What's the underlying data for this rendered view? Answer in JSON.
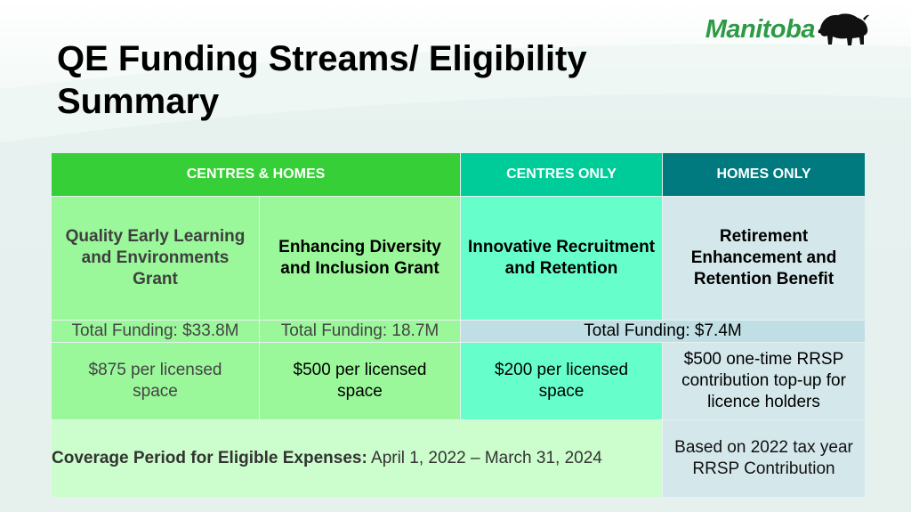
{
  "title": "QE Funding Streams/ Eligibility Summary",
  "logo": {
    "word": "Manitoba",
    "color": "#2e9a45"
  },
  "headers": {
    "centres_homes": "CENTRES & HOMES",
    "centres_only": "CENTRES ONLY",
    "homes_only": "HOMES ONLY"
  },
  "programs": [
    {
      "name": "Quality Early Learning and Environments Grant",
      "funding": "Total Funding: $33.8M",
      "rate": "$875 per licensed space"
    },
    {
      "name": "Enhancing Diversity and Inclusion Grant",
      "funding": "Total Funding: 18.7M",
      "rate": "$500 per licensed space"
    },
    {
      "name": "Innovative Recruitment and Retention",
      "rate": "$200 per licensed space"
    },
    {
      "name": "Retirement Enhancement and Retention Benefit",
      "rate": "$500 one-time RRSP contribution top-up for licence holders"
    }
  ],
  "shared_funding": "Total Funding: $7.4M",
  "coverage": {
    "label": "Coverage Period for Eligible Expenses:",
    "period": "April 1, 2022 – March 31, 2024"
  },
  "basis": "Based on 2022 tax year RRSP Contribution",
  "colors": {
    "centres_homes_header": "#37cf37",
    "centres_only_header": "#00cc99",
    "homes_only_header": "#007a7e",
    "light_green": "#9af79a",
    "turquoise": "#66ffcc",
    "pale_blue": "#d4e8ec",
    "coverage_green": "#ccfdcc"
  }
}
